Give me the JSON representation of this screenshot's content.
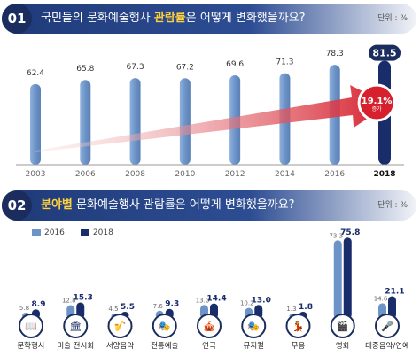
{
  "colors": {
    "bar2016": "#6d94c8",
    "bar2018": "#1a2d6b",
    "highlight": "#d6202d",
    "navy": "#1a2d5e"
  },
  "section1": {
    "number": "01",
    "title_prefix": "국민들의 문화예술행사 ",
    "title_highlight": "관람률",
    "title_suffix": "은 어떻게 변화했을까요?",
    "unit": "단위 : %",
    "callout_value": "19.1%",
    "callout_label": "증가"
  },
  "section2": {
    "number": "02",
    "title_highlight": "분야별",
    "title_suffix": " 문화예술행사 관람률은 어떻게 변화했을까요?",
    "unit": "단위 : %",
    "legend": [
      "2016",
      "2018"
    ]
  },
  "chart_data": [
    {
      "type": "bar",
      "categories": [
        "2003",
        "2006",
        "2008",
        "2010",
        "2012",
        "2014",
        "2016",
        "2018"
      ],
      "values": [
        62.4,
        65.8,
        67.3,
        67.2,
        69.6,
        71.3,
        78.3,
        81.5
      ],
      "title": "국민들의 문화예술행사 관람률은 어떻게 변화했을까요?",
      "ylabel": "단위 : %",
      "ylim": [
        0,
        85
      ],
      "annotation": "19.1% 증가"
    },
    {
      "type": "bar",
      "categories": [
        "문학행사",
        "미술 전시회",
        "서양음악",
        "전통예술",
        "연극",
        "뮤지컬",
        "무용",
        "영화",
        "대중음악/연예"
      ],
      "series": [
        {
          "name": "2016",
          "values": [
            5.8,
            12.8,
            4.5,
            7.6,
            13.0,
            10.2,
            1.3,
            73.3,
            14.6
          ]
        },
        {
          "name": "2018",
          "values": [
            8.9,
            15.3,
            5.5,
            9.3,
            14.4,
            13.0,
            1.8,
            75.8,
            21.1
          ]
        }
      ],
      "title": "분야별 문화예술행사 관람률은 어떻게 변화했을까요?",
      "ylabel": "단위 : %",
      "ylim": [
        0,
        80
      ],
      "legend": "top-left"
    }
  ]
}
